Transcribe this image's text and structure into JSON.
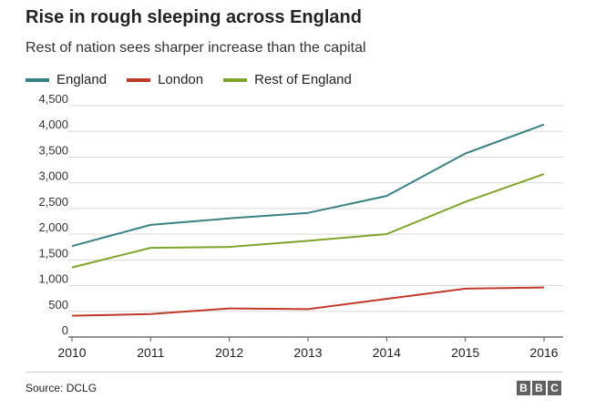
{
  "chart_data": {
    "type": "line",
    "title": "Rise in rough sleeping across England",
    "subtitle": "Rest of nation sees sharper increase than the capital",
    "x": [
      "2010",
      "2011",
      "2012",
      "2013",
      "2014",
      "2015",
      "2016"
    ],
    "xlabel": "",
    "ylabel": "",
    "ylim": [
      0,
      4500
    ],
    "yticks": [
      0,
      500,
      1000,
      1500,
      2000,
      2500,
      3000,
      3500,
      4000,
      4500
    ],
    "ytick_labels": [
      "0",
      "500",
      "1,000",
      "1,500",
      "2,000",
      "2,500",
      "3,000",
      "3,500",
      "4,000",
      "4,500"
    ],
    "grid": "horizontal",
    "legend_position": "top-left",
    "series": [
      {
        "name": "England",
        "color": "#3a8184",
        "values": [
          1768,
          2181,
          2309,
          2414,
          2744,
          3569,
          4134
        ]
      },
      {
        "name": "London",
        "color": "#c0392b",
        "values": [
          415,
          446,
          557,
          543,
          742,
          940,
          964
        ]
      },
      {
        "name": "Rest of England",
        "color": "#7fa32b",
        "values": [
          1353,
          1735,
          1752,
          1871,
          2002,
          2629,
          3170
        ]
      }
    ]
  },
  "footer": {
    "source": "Source: DCLG",
    "logo_letters": [
      "B",
      "B",
      "C"
    ]
  }
}
